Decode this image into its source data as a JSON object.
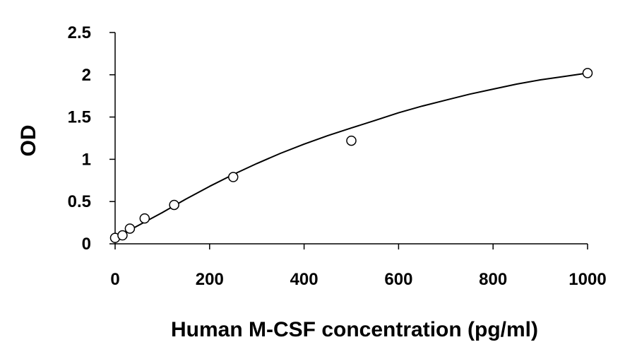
{
  "chart_data": {
    "type": "scatter",
    "title": "",
    "xlabel": "Human M-CSF concentration (pg/ml)",
    "ylabel": "OD",
    "xlim": [
      0,
      1000
    ],
    "ylim": [
      0,
      2.5
    ],
    "xticks": [
      0,
      200,
      400,
      600,
      800,
      1000
    ],
    "xtick_labels": [
      "0",
      "200",
      "400",
      "600",
      "800",
      "1000"
    ],
    "yticks": [
      0,
      0.5,
      1,
      1.5,
      2,
      2.5
    ],
    "ytick_labels": [
      "0",
      "0.5",
      "1",
      "1.5",
      "2",
      "2.5"
    ],
    "grid": false,
    "legend": "none",
    "series": [
      {
        "marker": "open-circle",
        "x": [
          0,
          15.6,
          31.25,
          62.5,
          125,
          250,
          500,
          1000
        ],
        "y": [
          0.07,
          0.1,
          0.18,
          0.3,
          0.46,
          0.79,
          1.22,
          2.02
        ]
      }
    ],
    "fit_curve": {
      "x": [
        0,
        50,
        100,
        150,
        200,
        250,
        300,
        350,
        400,
        450,
        500,
        550,
        600,
        650,
        700,
        750,
        800,
        850,
        900,
        950,
        1000
      ],
      "y": [
        0.07,
        0.22,
        0.37,
        0.53,
        0.68,
        0.82,
        0.95,
        1.07,
        1.18,
        1.28,
        1.37,
        1.46,
        1.55,
        1.63,
        1.7,
        1.77,
        1.83,
        1.89,
        1.94,
        1.98,
        2.02
      ]
    },
    "colors": {
      "axis": "#000000",
      "marker": "#000000",
      "curve": "#000000",
      "background": "#ffffff"
    }
  }
}
